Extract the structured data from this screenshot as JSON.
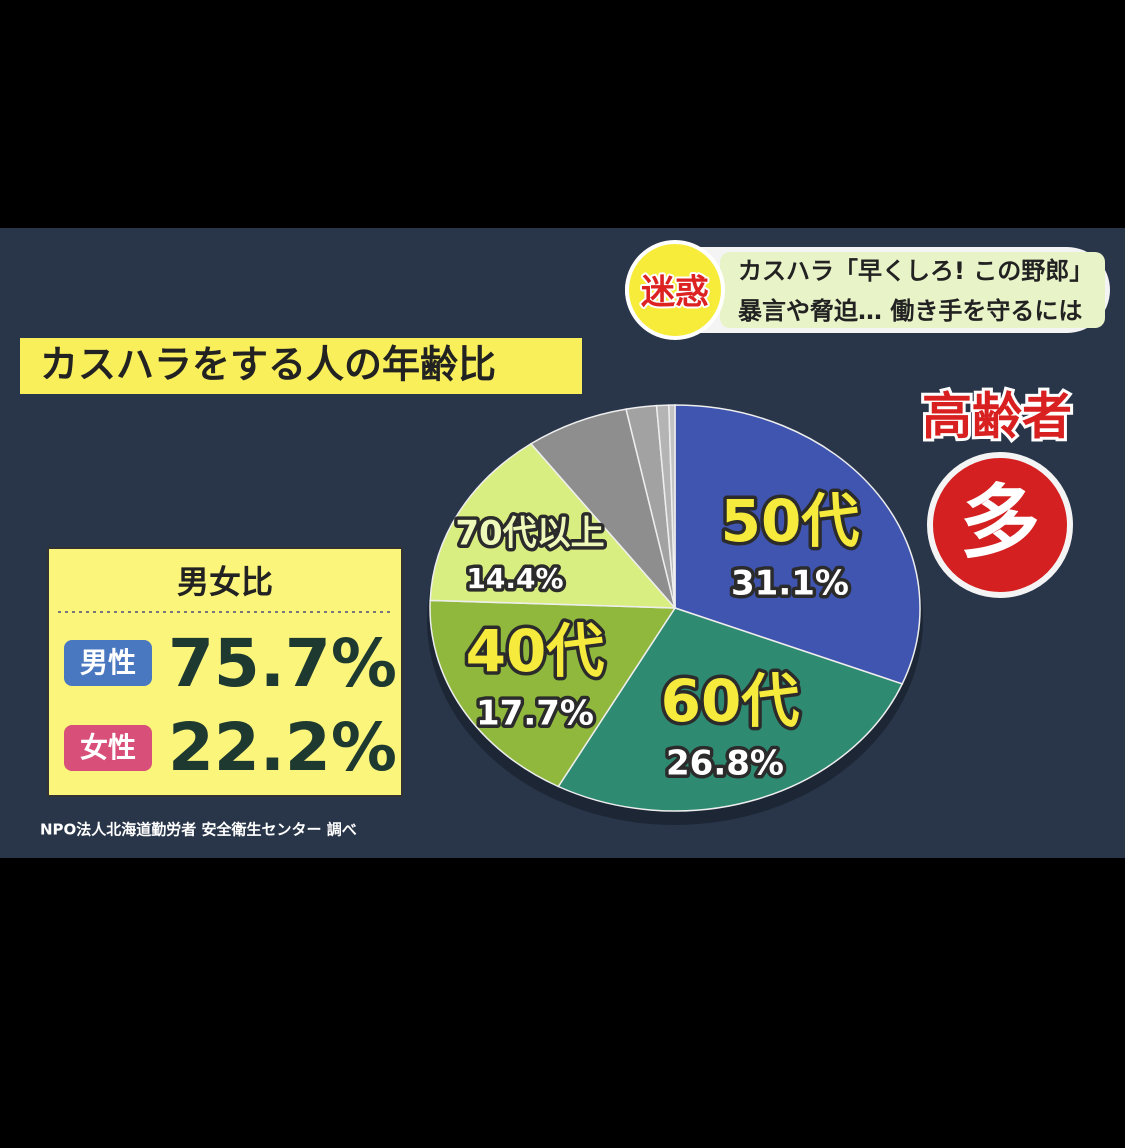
{
  "chart_data": {
    "type": "pie",
    "title": "カスハラをする人の年齢比",
    "categories": [
      "50代",
      "60代",
      "40代",
      "70代以上",
      null,
      null,
      null,
      null
    ],
    "values": [
      31.1,
      26.8,
      17.7,
      14.4,
      6.8,
      2.0,
      0.8,
      0.4
    ],
    "value_labels": [
      "31.1%",
      "26.8%",
      "17.7%",
      "14.4%",
      null,
      null,
      null,
      null
    ],
    "colors": [
      "#3f55b0",
      "#2f8a72",
      "#8fb83c",
      "#d9ee80",
      "#8e8e8e",
      "#a2a2a2",
      "#b4b4b4",
      "#c4c4c4"
    ]
  },
  "header": {
    "badge": "迷惑",
    "line1": "カスハラ「早くしろ! この野郎」",
    "line2": "暴言や脅迫… 働き手を守るには"
  },
  "callout": {
    "title": "高齢者",
    "mark": "多"
  },
  "gender_ratio": {
    "title": "男女比",
    "items": [
      {
        "label": "男性",
        "value_label": "75.7%"
      },
      {
        "label": "女性",
        "value_label": "22.2%"
      }
    ]
  },
  "source": "NPO法人北海道勤労者 安全衛生センター 調べ"
}
